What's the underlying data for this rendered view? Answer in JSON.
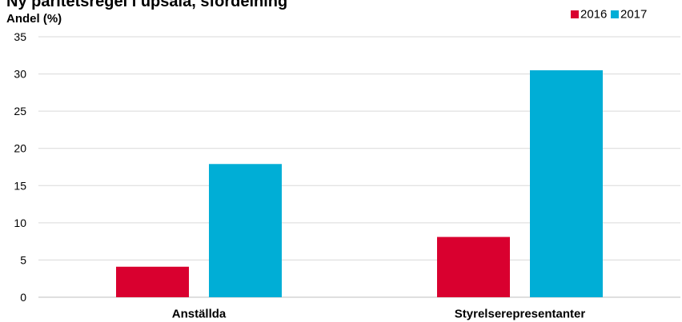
{
  "chart_data": {
    "type": "bar",
    "title": "Ny paritetsregel i upsala, sfördelning",
    "ylabel": "Andel (%)",
    "xlabel": "",
    "categories": [
      "Anställda",
      "Styrelserepresentanter"
    ],
    "series": [
      {
        "name": "2016",
        "color": "#d9002f",
        "values": [
          4.1,
          8.1
        ]
      },
      {
        "name": "2017",
        "color": "#00aed6",
        "values": [
          17.9,
          30.5
        ]
      }
    ],
    "ylim": [
      0,
      35
    ],
    "yticks": [
      0,
      5,
      10,
      15,
      20,
      25,
      30,
      35
    ],
    "grid": true,
    "legend": "top-right"
  }
}
